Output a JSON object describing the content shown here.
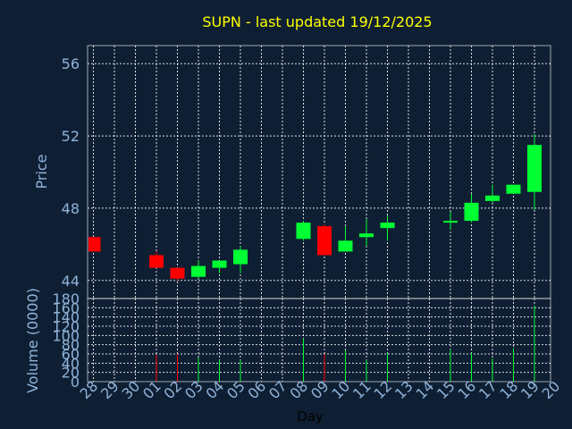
{
  "chart_data": [
    {
      "type": "candlestick",
      "title": "SUPN - last updated 19/12/2025",
      "ylabel": "Price",
      "ylim": [
        43,
        57
      ],
      "yticks": [
        44,
        48,
        52,
        56
      ],
      "categories": [
        "28",
        "29",
        "30",
        "01",
        "02",
        "03",
        "04",
        "05",
        "06",
        "07",
        "08",
        "09",
        "10",
        "11",
        "12",
        "13",
        "14",
        "15",
        "16",
        "17",
        "18",
        "19",
        "20"
      ],
      "up_color": "#00ff33",
      "down_color": "#ff0000",
      "candles": [
        {
          "day": "28",
          "open": 46.4,
          "high": 46.4,
          "low": 45.6,
          "close": 45.6
        },
        {
          "day": "01",
          "open": 45.4,
          "high": 45.6,
          "low": 44.7,
          "close": 44.7
        },
        {
          "day": "02",
          "open": 44.7,
          "high": 44.7,
          "low": 44.0,
          "close": 44.1
        },
        {
          "day": "03",
          "open": 44.2,
          "high": 45.1,
          "low": 44.1,
          "close": 44.8
        },
        {
          "day": "04",
          "open": 44.7,
          "high": 45.1,
          "low": 44.4,
          "close": 45.1
        },
        {
          "day": "05",
          "open": 44.9,
          "high": 45.9,
          "low": 44.4,
          "close": 45.7
        },
        {
          "day": "08",
          "open": 46.3,
          "high": 47.3,
          "low": 46.2,
          "close": 47.2
        },
        {
          "day": "09",
          "open": 47.0,
          "high": 47.1,
          "low": 45.4,
          "close": 45.4
        },
        {
          "day": "10",
          "open": 45.6,
          "high": 47.0,
          "low": 45.6,
          "close": 46.2
        },
        {
          "day": "11",
          "open": 46.4,
          "high": 47.4,
          "low": 45.9,
          "close": 46.6
        },
        {
          "day": "12",
          "open": 46.9,
          "high": 47.6,
          "low": 46.2,
          "close": 47.2
        },
        {
          "day": "15",
          "open": 47.2,
          "high": 47.8,
          "low": 46.8,
          "close": 47.3
        },
        {
          "day": "16",
          "open": 47.3,
          "high": 48.8,
          "low": 47.2,
          "close": 48.3
        },
        {
          "day": "17",
          "open": 48.4,
          "high": 49.3,
          "low": 48.3,
          "close": 48.7
        },
        {
          "day": "18",
          "open": 48.8,
          "high": 49.3,
          "low": 48.8,
          "close": 49.3
        },
        {
          "day": "19",
          "open": 48.9,
          "high": 52.1,
          "low": 47.9,
          "close": 51.5
        }
      ]
    },
    {
      "type": "bar",
      "xlabel": "Day",
      "ylabel": "Volume (0000)",
      "ylim": [
        0,
        180
      ],
      "yticks": [
        0,
        20,
        40,
        60,
        80,
        100,
        120,
        140,
        160,
        180
      ],
      "categories": [
        "28",
        "29",
        "30",
        "01",
        "02",
        "03",
        "04",
        "05",
        "06",
        "07",
        "08",
        "09",
        "10",
        "11",
        "12",
        "13",
        "14",
        "15",
        "16",
        "17",
        "18",
        "19",
        "20"
      ],
      "bars": [
        {
          "day": "01",
          "value": 58,
          "direction": "down"
        },
        {
          "day": "02",
          "value": 60,
          "direction": "down"
        },
        {
          "day": "03",
          "value": 52,
          "direction": "up"
        },
        {
          "day": "04",
          "value": 47,
          "direction": "up"
        },
        {
          "day": "05",
          "value": 46,
          "direction": "up"
        },
        {
          "day": "08",
          "value": 93,
          "direction": "up"
        },
        {
          "day": "09",
          "value": 60,
          "direction": "down"
        },
        {
          "day": "10",
          "value": 68,
          "direction": "up"
        },
        {
          "day": "11",
          "value": 47,
          "direction": "up"
        },
        {
          "day": "12",
          "value": 62,
          "direction": "up"
        },
        {
          "day": "15",
          "value": 70,
          "direction": "up"
        },
        {
          "day": "16",
          "value": 62,
          "direction": "up"
        },
        {
          "day": "17",
          "value": 50,
          "direction": "up"
        },
        {
          "day": "18",
          "value": 72,
          "direction": "up"
        },
        {
          "day": "19",
          "value": 165,
          "direction": "up"
        }
      ]
    }
  ]
}
